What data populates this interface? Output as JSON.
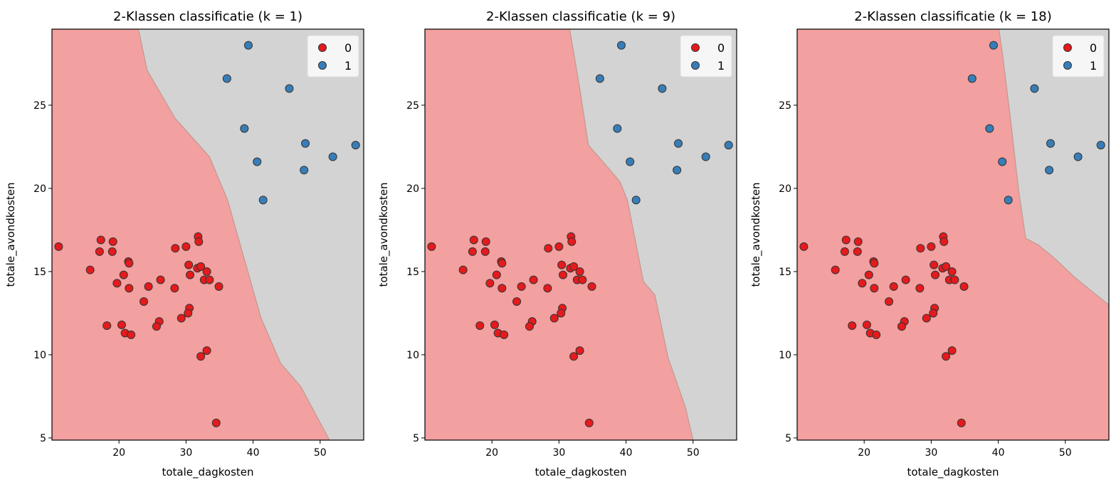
{
  "chart_data": {
    "type": "scatter",
    "shared": {
      "xlabel": "totale_dagkosten",
      "ylabel": "totale_avondkosten",
      "xlim": [
        10.0,
        56.5
      ],
      "ylim": [
        4.87,
        29.57
      ],
      "xticks": [
        20,
        30,
        40,
        50
      ],
      "yticks": [
        5,
        10,
        15,
        20,
        25
      ],
      "grid": false,
      "legend_placement": "top-right",
      "region_colors": {
        "0": "#f2a0a0",
        "1": "#d3d3d3"
      },
      "boundary_color": "#b8968c",
      "series": [
        {
          "name": "0",
          "color": "#e41a1c",
          "points": [
            [
              11.0,
              16.5
            ],
            [
              17.3,
              16.9
            ],
            [
              19.1,
              16.8
            ],
            [
              17.1,
              16.2
            ],
            [
              19.0,
              16.2
            ],
            [
              21.4,
              15.6
            ],
            [
              21.5,
              15.5
            ],
            [
              15.7,
              15.1
            ],
            [
              20.7,
              14.8
            ],
            [
              19.7,
              14.3
            ],
            [
              21.5,
              14.0
            ],
            [
              24.4,
              14.1
            ],
            [
              26.2,
              14.5
            ],
            [
              28.3,
              14.0
            ],
            [
              23.7,
              13.2
            ],
            [
              28.4,
              16.4
            ],
            [
              30.0,
              16.5
            ],
            [
              31.8,
              17.1
            ],
            [
              31.9,
              16.8
            ],
            [
              30.4,
              15.4
            ],
            [
              31.7,
              15.2
            ],
            [
              32.2,
              15.3
            ],
            [
              33.1,
              15.0
            ],
            [
              30.6,
              14.8
            ],
            [
              32.7,
              14.5
            ],
            [
              33.5,
              14.5
            ],
            [
              34.9,
              14.1
            ],
            [
              30.5,
              12.8
            ],
            [
              30.3,
              12.5
            ],
            [
              29.3,
              12.2
            ],
            [
              26.0,
              12.0
            ],
            [
              25.6,
              11.7
            ],
            [
              18.2,
              11.75
            ],
            [
              20.4,
              11.8
            ],
            [
              20.9,
              11.3
            ],
            [
              21.8,
              11.2
            ],
            [
              33.1,
              10.25
            ],
            [
              32.2,
              9.9
            ],
            [
              34.5,
              5.9
            ]
          ]
        },
        {
          "name": "1",
          "color": "#377eb8",
          "points": [
            [
              39.3,
              28.6
            ],
            [
              36.1,
              26.6
            ],
            [
              45.4,
              26.0
            ],
            [
              38.7,
              23.6
            ],
            [
              47.8,
              22.7
            ],
            [
              55.3,
              22.6
            ],
            [
              51.9,
              21.9
            ],
            [
              40.6,
              21.6
            ],
            [
              47.6,
              21.1
            ],
            [
              41.5,
              19.3
            ]
          ]
        }
      ]
    },
    "panels": [
      {
        "title": "2-Klassen classificatie (k = 1)",
        "class0_region": [
          [
            22.9,
            29.57
          ],
          [
            24.2,
            27.1
          ],
          [
            28.4,
            24.2
          ],
          [
            33.5,
            21.9
          ],
          [
            36.2,
            19.3
          ],
          [
            41.2,
            12.2
          ],
          [
            44.1,
            9.5
          ],
          [
            47.1,
            8.1
          ],
          [
            51.4,
            4.87
          ],
          [
            10.0,
            4.87
          ],
          [
            10.0,
            29.57
          ]
        ]
      },
      {
        "title": "2-Klassen classificatie (k = 9)",
        "class0_region": [
          [
            31.6,
            29.57
          ],
          [
            33.1,
            26.0
          ],
          [
            34.4,
            22.6
          ],
          [
            37.0,
            21.4
          ],
          [
            39.1,
            20.4
          ],
          [
            40.2,
            19.3
          ],
          [
            42.6,
            14.4
          ],
          [
            44.3,
            13.6
          ],
          [
            46.3,
            9.8
          ],
          [
            48.9,
            6.8
          ],
          [
            50.0,
            4.87
          ],
          [
            10.0,
            4.87
          ],
          [
            10.0,
            29.57
          ]
        ]
      },
      {
        "title": "2-Klassen classificatie (k = 18)",
        "class0_region": [
          [
            40.1,
            29.57
          ],
          [
            40.6,
            28.2
          ],
          [
            41.7,
            24.6
          ],
          [
            43.1,
            19.7
          ],
          [
            44.1,
            17.0
          ],
          [
            46.0,
            16.6
          ],
          [
            48.4,
            15.8
          ],
          [
            51.3,
            14.7
          ],
          [
            53.7,
            13.9
          ],
          [
            56.5,
            13.0
          ],
          [
            56.5,
            4.87
          ],
          [
            10.0,
            4.87
          ],
          [
            10.0,
            29.57
          ]
        ]
      }
    ]
  }
}
